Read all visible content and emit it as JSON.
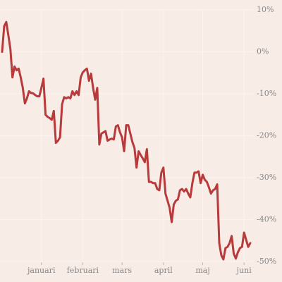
{
  "chart_data": {
    "type": "line",
    "color": "#b83a3a",
    "grid": true,
    "categories": [
      null,
      null,
      null,
      null,
      null,
      null,
      null,
      null,
      null,
      null,
      null,
      null,
      null,
      null,
      null,
      null,
      null,
      null,
      null,
      "januari",
      null,
      null,
      null,
      null,
      null,
      null,
      null,
      null,
      null,
      null,
      null,
      null,
      null,
      null,
      null,
      null,
      null,
      null,
      null,
      "februari",
      null,
      null,
      null,
      null,
      null,
      null,
      null,
      null,
      null,
      null,
      null,
      null,
      null,
      null,
      null,
      null,
      null,
      null,
      "mars",
      null,
      null,
      null,
      null,
      null,
      null,
      null,
      null,
      null,
      null,
      null,
      null,
      null,
      null,
      null,
      null,
      null,
      null,
      null,
      "april",
      null,
      null,
      null,
      null,
      null,
      null,
      null,
      null,
      null,
      null,
      null,
      null,
      null,
      null,
      null,
      null,
      null,
      null,
      "maj",
      null,
      null,
      null,
      null,
      null,
      null,
      null,
      null,
      null,
      null,
      null,
      null,
      null,
      null,
      null,
      null,
      null,
      null,
      null,
      "juni",
      null,
      null,
      null
    ],
    "values": [
      0,
      6.1,
      7.1,
      4,
      0.7,
      -6.1,
      -3.5,
      -4.4,
      -4,
      -6.1,
      -8.6,
      -12.3,
      -11.1,
      -9.4,
      -9.8,
      -9.9,
      -10.3,
      -10.6,
      -10.6,
      -8.6,
      -6.4,
      -15,
      -15.5,
      -15.8,
      -16.2,
      -14.1,
      -21.7,
      -21.2,
      -20.4,
      -12.5,
      -10.8,
      -11.1,
      -10.8,
      -11.1,
      -9.4,
      -10.3,
      -9.4,
      -10.3,
      -6.1,
      -4.9,
      -4.4,
      -4,
      -6.9,
      -5.2,
      -8.6,
      -11.4,
      -8.6,
      -22.1,
      -19.5,
      -19.2,
      -18.9,
      -21.2,
      -20.9,
      -20.7,
      -20.9,
      -17.8,
      -17.5,
      -19.2,
      -20.4,
      -23.7,
      -17.5,
      -17.5,
      -19.5,
      -21.5,
      -22.9,
      -27.6,
      -23.7,
      -24.6,
      -25.4,
      -26.3,
      -23.2,
      -31,
      -31,
      -31.3,
      -31.3,
      -32.7,
      -33,
      -28.8,
      -27.6,
      -33.8,
      -35.5,
      -37.2,
      -40.6,
      -36.4,
      -35.5,
      -35.2,
      -33,
      -32.7,
      -33.3,
      -32.7,
      -33.8,
      -34.7,
      -31.3,
      -28.8,
      -28.8,
      -28.5,
      -31.3,
      -29.3,
      -30.5,
      -31,
      -32.3,
      -33.8,
      -33,
      -32.7,
      -31.6,
      -45.6,
      -48.5,
      -49.5,
      -46.8,
      -46.5,
      -45.6,
      -43.9,
      -48.1,
      -49.3,
      -47.8,
      -46.8,
      -46.5,
      -43.1,
      -44.8,
      -46.5,
      -45.6
    ],
    "ylim": [
      -50,
      10
    ],
    "yticks": [
      {
        "value": 10,
        "label": "10%"
      },
      {
        "value": 0,
        "label": "0%"
      },
      {
        "value": -10,
        "label": "-10%"
      },
      {
        "value": -20,
        "label": "-20%"
      },
      {
        "value": -30,
        "label": "-30%"
      },
      {
        "value": -40,
        "label": "-40%"
      },
      {
        "value": -50,
        "label": "-50%"
      }
    ]
  }
}
